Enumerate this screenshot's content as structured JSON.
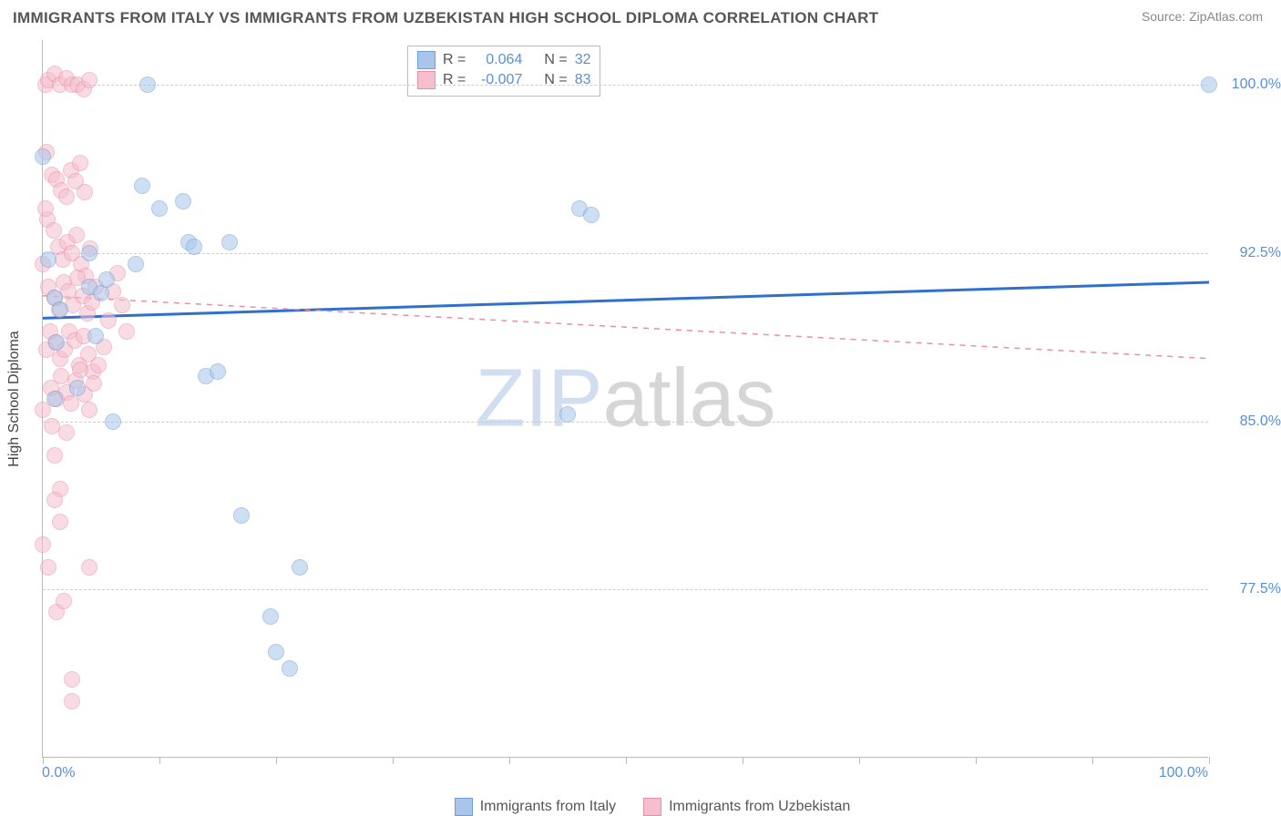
{
  "title": "IMMIGRANTS FROM ITALY VS IMMIGRANTS FROM UZBEKISTAN HIGH SCHOOL DIPLOMA CORRELATION CHART",
  "source_label": "Source:",
  "source_name": "ZipAtlas.com",
  "watermark": {
    "part1": "ZIP",
    "part2": "atlas"
  },
  "chart": {
    "type": "scatter",
    "background_color": "#ffffff",
    "grid_color": "#cccccc",
    "axis_color": "#bbbbbb",
    "text_color": "#555555",
    "value_color": "#5a8fd6",
    "marker_radius": 9,
    "marker_opacity": 0.55,
    "xaxis": {
      "min": 0,
      "max": 100,
      "label_left": "0.0%",
      "label_right": "100.0%",
      "ticks": [
        0,
        10,
        20,
        30,
        40,
        50,
        60,
        70,
        80,
        90,
        100
      ]
    },
    "yaxis": {
      "label": "High School Diploma",
      "min": 70,
      "max": 102,
      "gridlines": [
        {
          "value": 77.5,
          "label": "77.5%"
        },
        {
          "value": 85.0,
          "label": "85.0%"
        },
        {
          "value": 92.5,
          "label": "92.5%"
        },
        {
          "value": 100.0,
          "label": "100.0%"
        }
      ]
    },
    "series": [
      {
        "name": "Immigrants from Italy",
        "fill": "#a9c6ea",
        "stroke": "#6f9fd8",
        "trend": {
          "style": "solid",
          "width": 3,
          "color": "#2f6fce",
          "y_at_x0": 89.6,
          "y_at_x100": 91.2
        },
        "R": "0.064",
        "N": "32",
        "points": [
          [
            0.5,
            92.2
          ],
          [
            1.0,
            90.5
          ],
          [
            1.2,
            88.5
          ],
          [
            1.5,
            90.0
          ],
          [
            1.0,
            86.0
          ],
          [
            0.0,
            96.8
          ],
          [
            8.0,
            92.0
          ],
          [
            8.5,
            95.5
          ],
          [
            9.0,
            100.0
          ],
          [
            10.0,
            94.5
          ],
          [
            12.0,
            94.8
          ],
          [
            12.5,
            93.0
          ],
          [
            13.0,
            92.8
          ],
          [
            14.0,
            87.0
          ],
          [
            15.0,
            87.2
          ],
          [
            16.0,
            93.0
          ],
          [
            4.0,
            91.0
          ],
          [
            5.0,
            90.7
          ],
          [
            5.5,
            91.3
          ],
          [
            3.0,
            86.5
          ],
          [
            4.5,
            88.8
          ],
          [
            4.0,
            92.5
          ],
          [
            17.0,
            80.8
          ],
          [
            19.5,
            76.3
          ],
          [
            20.0,
            74.7
          ],
          [
            21.2,
            74.0
          ],
          [
            22.0,
            78.5
          ],
          [
            6.0,
            85.0
          ],
          [
            45.0,
            85.3
          ],
          [
            46.0,
            94.5
          ],
          [
            47.0,
            94.2
          ],
          [
            100.0,
            100.0
          ]
        ]
      },
      {
        "name": "Immigrants from Uzbekistan",
        "fill": "#f5bfcd",
        "stroke": "#e98fa8",
        "trend": {
          "style": "dashed",
          "width": 1.5,
          "color": "#e98fa8",
          "y_at_x0": 90.6,
          "y_at_x100": 87.8
        },
        "R": "-0.007",
        "N": "83",
        "points": [
          [
            0.2,
            100.0
          ],
          [
            0.5,
            100.2
          ],
          [
            1.0,
            100.5
          ],
          [
            1.5,
            100.0
          ],
          [
            2.0,
            100.3
          ],
          [
            2.5,
            100.0
          ],
          [
            3.0,
            100.0
          ],
          [
            3.5,
            99.8
          ],
          [
            4.0,
            100.2
          ],
          [
            0.3,
            97.0
          ],
          [
            0.8,
            96.0
          ],
          [
            1.2,
            95.8
          ],
          [
            1.6,
            95.3
          ],
          [
            2.0,
            95.0
          ],
          [
            2.4,
            96.2
          ],
          [
            2.8,
            95.7
          ],
          [
            3.2,
            96.5
          ],
          [
            3.6,
            95.2
          ],
          [
            0.4,
            94.0
          ],
          [
            0.9,
            93.5
          ],
          [
            1.3,
            92.8
          ],
          [
            1.7,
            92.2
          ],
          [
            2.1,
            93.0
          ],
          [
            2.5,
            92.5
          ],
          [
            2.9,
            93.3
          ],
          [
            3.3,
            92.0
          ],
          [
            3.7,
            91.5
          ],
          [
            4.1,
            92.7
          ],
          [
            0.5,
            91.0
          ],
          [
            1.0,
            90.5
          ],
          [
            1.4,
            90.0
          ],
          [
            1.8,
            91.2
          ],
          [
            2.2,
            90.8
          ],
          [
            2.6,
            90.2
          ],
          [
            3.0,
            91.4
          ],
          [
            3.4,
            90.6
          ],
          [
            3.8,
            89.8
          ],
          [
            4.2,
            90.3
          ],
          [
            0.6,
            89.0
          ],
          [
            1.1,
            88.5
          ],
          [
            1.5,
            87.8
          ],
          [
            1.9,
            88.2
          ],
          [
            2.3,
            89.0
          ],
          [
            2.7,
            88.6
          ],
          [
            3.1,
            87.5
          ],
          [
            3.5,
            88.8
          ],
          [
            3.9,
            88.0
          ],
          [
            4.3,
            87.2
          ],
          [
            0.7,
            86.5
          ],
          [
            1.2,
            86.0
          ],
          [
            1.6,
            87.0
          ],
          [
            2.0,
            86.3
          ],
          [
            2.4,
            85.8
          ],
          [
            2.8,
            86.8
          ],
          [
            3.2,
            87.3
          ],
          [
            3.6,
            86.2
          ],
          [
            4.0,
            85.5
          ],
          [
            4.4,
            86.7
          ],
          [
            4.8,
            87.5
          ],
          [
            5.2,
            88.3
          ],
          [
            5.6,
            89.5
          ],
          [
            6.0,
            90.8
          ],
          [
            6.4,
            91.6
          ],
          [
            6.8,
            90.2
          ],
          [
            7.2,
            89.0
          ],
          [
            1.0,
            83.5
          ],
          [
            1.5,
            82.0
          ],
          [
            2.0,
            84.5
          ],
          [
            0.0,
            79.5
          ],
          [
            0.5,
            78.5
          ],
          [
            4.0,
            78.5
          ],
          [
            1.2,
            76.5
          ],
          [
            1.8,
            77.0
          ],
          [
            2.5,
            73.5
          ],
          [
            2.5,
            72.5
          ],
          [
            1.0,
            81.5
          ],
          [
            1.5,
            80.5
          ],
          [
            0.8,
            84.8
          ],
          [
            0.3,
            88.2
          ],
          [
            0.0,
            92.0
          ],
          [
            0.2,
            94.5
          ],
          [
            0.0,
            85.5
          ],
          [
            4.5,
            91.0
          ]
        ]
      }
    ],
    "legend_top": {
      "rows": [
        {
          "series": 0,
          "labels": [
            "R =",
            "N ="
          ]
        },
        {
          "series": 1,
          "labels": [
            "R =",
            "N ="
          ]
        }
      ]
    }
  }
}
